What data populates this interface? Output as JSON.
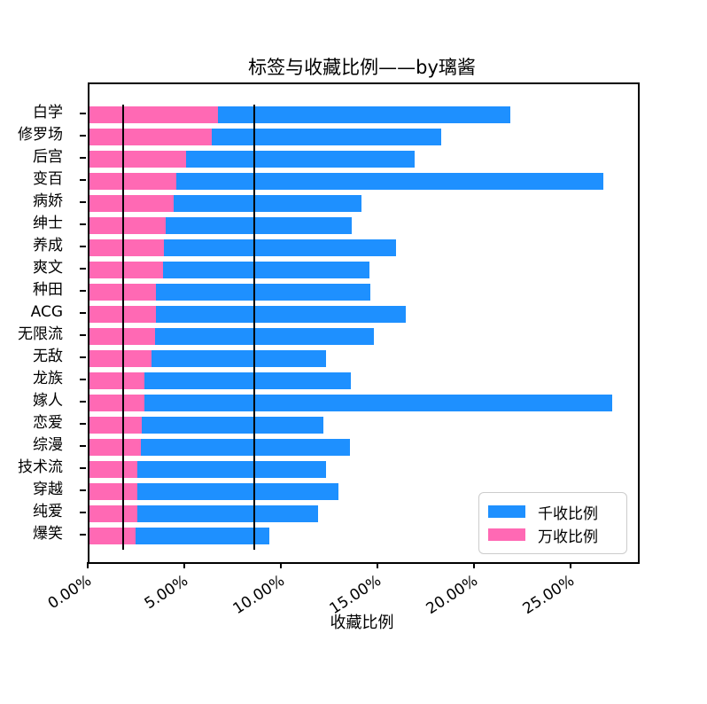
{
  "figure": {
    "title": "标签与收藏比例——by璃酱",
    "xlabel": "收藏比例"
  },
  "legend": {
    "items": [
      {
        "label": "千收比例",
        "color": "#1E90FF"
      },
      {
        "label": "万收比例",
        "color": "#FF69B4"
      }
    ]
  },
  "chart_data": {
    "type": "bar",
    "orientation": "horizontal",
    "title": "标签与收藏比例——by璃酱",
    "xlabel": "收藏比例",
    "ylabel": "",
    "categories": [
      "白学",
      "修罗场",
      "后宫",
      "变百",
      "病娇",
      "绅士",
      "养成",
      "爽文",
      "种田",
      "ACG",
      "无限流",
      "无敌",
      "龙族",
      "嫁人",
      "恋爱",
      "综漫",
      "技术流",
      "穿越",
      "纯爱",
      "爆笑"
    ],
    "series": [
      {
        "name": "千收比例",
        "color": "#1E90FF",
        "values": [
          21.8,
          18.25,
          16.85,
          26.65,
          14.1,
          13.6,
          15.9,
          14.5,
          14.55,
          16.4,
          14.75,
          12.25,
          13.55,
          27.1,
          12.1,
          13.5,
          12.25,
          12.9,
          11.85,
          9.3
        ]
      },
      {
        "name": "万收比例",
        "color": "#FF69B4",
        "values": [
          6.65,
          6.35,
          5.0,
          4.5,
          4.35,
          3.95,
          3.85,
          3.8,
          3.45,
          3.45,
          3.4,
          3.2,
          2.85,
          2.85,
          2.7,
          2.65,
          2.5,
          2.5,
          2.5,
          2.4
        ]
      }
    ],
    "x_ticks": [
      {
        "value": 0,
        "label": "0.00%"
      },
      {
        "value": 5,
        "label": "5.00%"
      },
      {
        "value": 10,
        "label": "10.00%"
      },
      {
        "value": 15,
        "label": "15.00%"
      },
      {
        "value": 20,
        "label": "20.00%"
      },
      {
        "value": 25,
        "label": "25.00%"
      }
    ],
    "xlim": [
      0,
      28.42
    ],
    "reference_lines": [
      {
        "x": 1.76,
        "color": "#000000"
      },
      {
        "x": 8.55,
        "color": "#000000"
      }
    ],
    "legend_position": "lower right",
    "grid": false,
    "unit": "percent"
  }
}
